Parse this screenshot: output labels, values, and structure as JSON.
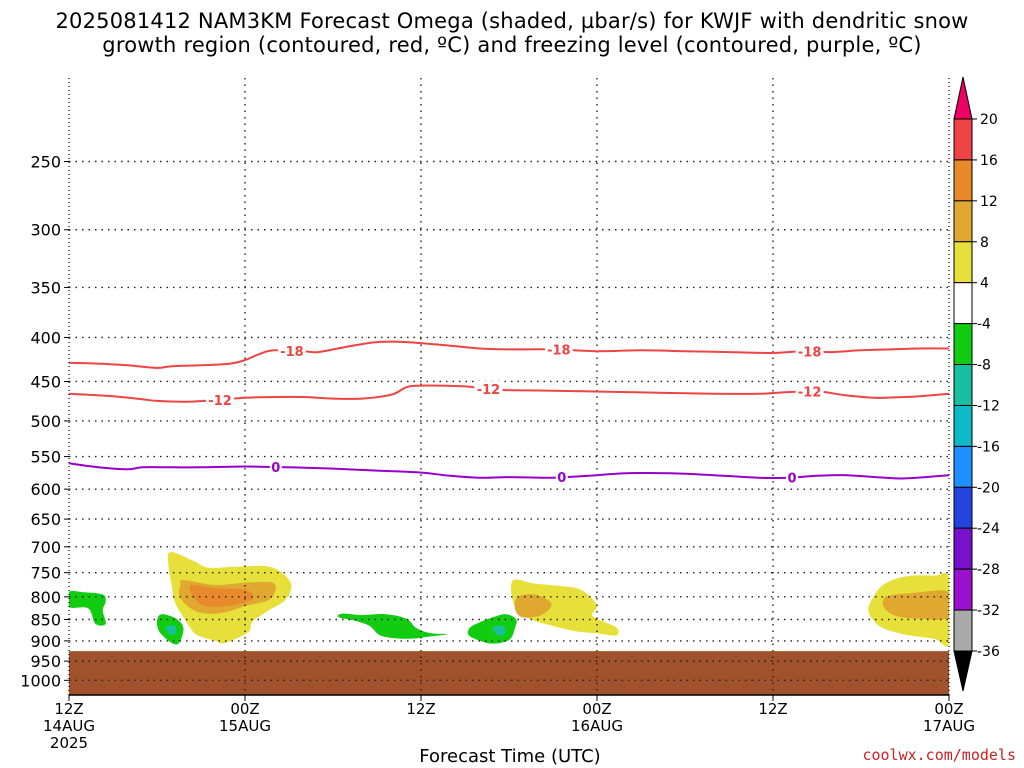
{
  "title": {
    "line1": "2025081412 NAM3KM Forecast Omega (shaded, µbar/s) for KWJF with dendritic snow",
    "line2": "growth region (contoured, red, ºC) and freezing level (contoured, purple, ºC)"
  },
  "credit": "coolwx.com/models",
  "chart_data": {
    "type": "heatmap",
    "xlabel": "Forecast Time (UTC)",
    "ylabel": "",
    "x_domain_hours": [
      0,
      60
    ],
    "y_axis": {
      "scale": "log",
      "range": [
        1040,
        200
      ],
      "unit": "hPa",
      "ticks": [
        250,
        300,
        350,
        400,
        450,
        500,
        550,
        600,
        650,
        700,
        750,
        800,
        850,
        900,
        950,
        1000
      ]
    },
    "x_ticks": [
      {
        "hour": 0,
        "line1": "12Z",
        "line2": "14AUG",
        "line3": "2025"
      },
      {
        "hour": 12,
        "line1": "00Z",
        "line2": "15AUG",
        "line3": ""
      },
      {
        "hour": 24,
        "line1": "12Z",
        "line2": "",
        "line3": ""
      },
      {
        "hour": 36,
        "line1": "00Z",
        "line2": "16AUG",
        "line3": ""
      },
      {
        "hour": 48,
        "line1": "12Z",
        "line2": "",
        "line3": ""
      },
      {
        "hour": 60,
        "line1": "00Z",
        "line2": "17AUG",
        "line3": ""
      }
    ],
    "grid": true,
    "terrain": {
      "surface_pressure_hpa": 925,
      "color": "#a0522d"
    },
    "contours": [
      {
        "name": "-18",
        "color": "#ee4444",
        "points": [
          [
            0,
            428
          ],
          [
            2,
            429
          ],
          [
            4,
            431
          ],
          [
            6,
            434
          ],
          [
            7,
            432
          ],
          [
            9,
            431
          ],
          [
            11,
            429
          ],
          [
            12,
            425
          ],
          [
            13,
            418
          ],
          [
            14,
            414
          ],
          [
            16,
            415
          ],
          [
            17,
            416
          ],
          [
            19,
            410
          ],
          [
            21,
            405
          ],
          [
            23,
            405
          ],
          [
            26,
            409
          ],
          [
            28,
            412
          ],
          [
            30,
            413
          ],
          [
            33,
            413
          ],
          [
            36,
            415
          ],
          [
            39,
            414
          ],
          [
            42,
            415
          ],
          [
            45,
            416
          ],
          [
            48,
            417
          ],
          [
            50,
            415
          ],
          [
            52,
            416
          ],
          [
            54,
            414
          ],
          [
            56,
            413
          ],
          [
            58,
            412
          ],
          [
            60,
            412
          ]
        ],
        "labels": [
          {
            "x": 15.2,
            "text": "-18"
          },
          {
            "x": 33.4,
            "text": "-18"
          },
          {
            "x": 50.5,
            "text": "-18"
          }
        ]
      },
      {
        "name": "-12",
        "color": "#ee4444",
        "points": [
          [
            0,
            465
          ],
          [
            3,
            468
          ],
          [
            5,
            472
          ],
          [
            6,
            474
          ],
          [
            8,
            475
          ],
          [
            10,
            473
          ],
          [
            12,
            470
          ],
          [
            14,
            469
          ],
          [
            16,
            469
          ],
          [
            18,
            471
          ],
          [
            20,
            471
          ],
          [
            22,
            466
          ],
          [
            23,
            457
          ],
          [
            24,
            455
          ],
          [
            27,
            456
          ],
          [
            29,
            460
          ],
          [
            32,
            461
          ],
          [
            35,
            462
          ],
          [
            38,
            463
          ],
          [
            41,
            464
          ],
          [
            44,
            465
          ],
          [
            47,
            465
          ],
          [
            49,
            463
          ],
          [
            51,
            462
          ],
          [
            53,
            467
          ],
          [
            55,
            470
          ],
          [
            57,
            469
          ],
          [
            58,
            468
          ],
          [
            60,
            465
          ]
        ],
        "labels": [
          {
            "x": 10.3,
            "text": "-12"
          },
          {
            "x": 28.6,
            "text": "-12"
          },
          {
            "x": 50.5,
            "text": "-12"
          }
        ]
      },
      {
        "name": "0",
        "color": "#9900cc",
        "points": [
          [
            0,
            560
          ],
          [
            2,
            566
          ],
          [
            4,
            569
          ],
          [
            5,
            566
          ],
          [
            7,
            566
          ],
          [
            9,
            566
          ],
          [
            11,
            565
          ],
          [
            13,
            565
          ],
          [
            15,
            566
          ],
          [
            18,
            568
          ],
          [
            21,
            571
          ],
          [
            24,
            574
          ],
          [
            26,
            579
          ],
          [
            28,
            582
          ],
          [
            30,
            581
          ],
          [
            33,
            582
          ],
          [
            36,
            578
          ],
          [
            38,
            575
          ],
          [
            41,
            575
          ],
          [
            44,
            578
          ],
          [
            47,
            582
          ],
          [
            49,
            582
          ],
          [
            51,
            579
          ],
          [
            53,
            578
          ],
          [
            55,
            581
          ],
          [
            57,
            583
          ],
          [
            60,
            578
          ]
        ],
        "labels": [
          {
            "x": 14.1,
            "text": "0"
          },
          {
            "x": 33.6,
            "text": "0"
          },
          {
            "x": 49.3,
            "text": "0"
          }
        ]
      }
    ],
    "shaded_regions": [
      {
        "level": "4",
        "color": "#e8e03a",
        "points": [
          [
            6.9,
            710
          ],
          [
            8.5,
            727
          ],
          [
            9.5,
            740
          ],
          [
            11.5,
            738
          ],
          [
            13.8,
            739
          ],
          [
            15.1,
            770
          ],
          [
            14.8,
            805
          ],
          [
            13.5,
            832
          ],
          [
            12.5,
            855
          ],
          [
            12.2,
            880
          ],
          [
            10.6,
            905
          ],
          [
            10,
            900
          ],
          [
            9,
            890
          ],
          [
            8.5,
            880
          ],
          [
            7.8,
            845
          ],
          [
            7.2,
            810
          ],
          [
            7.0,
            775
          ],
          [
            6.8,
            740
          ]
        ]
      },
      {
        "level": "8",
        "color": "#e0a830",
        "points": [
          [
            7.8,
            765
          ],
          [
            10,
            775
          ],
          [
            12.2,
            770
          ],
          [
            14,
            772
          ],
          [
            13.7,
            805
          ],
          [
            12,
            820
          ],
          [
            10.5,
            835
          ],
          [
            9,
            835
          ],
          [
            8,
            818
          ],
          [
            7.5,
            795
          ],
          [
            7.6,
            775
          ]
        ]
      },
      {
        "level": "12",
        "color": "#e88a2c",
        "points": [
          [
            8.4,
            775
          ],
          [
            10,
            782
          ],
          [
            12,
            785
          ],
          [
            12.6,
            800
          ],
          [
            12,
            812
          ],
          [
            10.2,
            822
          ],
          [
            9.1,
            818
          ],
          [
            8.6,
            805
          ],
          [
            8.3,
            790
          ]
        ]
      },
      {
        "level": "4",
        "color": "#e8e03a",
        "points": [
          [
            30.3,
            765
          ],
          [
            31.7,
            772
          ],
          [
            33.4,
            777
          ],
          [
            34.9,
            785
          ],
          [
            36,
            818
          ],
          [
            35.7,
            842
          ],
          [
            37.3,
            868
          ],
          [
            37.3,
            887
          ],
          [
            36,
            882
          ],
          [
            34.5,
            877
          ],
          [
            33,
            865
          ],
          [
            31.5,
            850
          ],
          [
            30.6,
            830
          ],
          [
            30.2,
            800
          ]
        ]
      },
      {
        "level": "8",
        "color": "#e0a830",
        "points": [
          [
            30.6,
            800
          ],
          [
            31.8,
            795
          ],
          [
            32.9,
            815
          ],
          [
            32.2,
            840
          ],
          [
            30.9,
            845
          ],
          [
            30.4,
            825
          ]
        ]
      },
      {
        "level": "4",
        "color": "#e8e03a",
        "points": [
          [
            54.7,
            808
          ],
          [
            55.5,
            775
          ],
          [
            57,
            758
          ],
          [
            59,
            756
          ],
          [
            60,
            762
          ],
          [
            60,
            905
          ],
          [
            59,
            895
          ],
          [
            57,
            885
          ],
          [
            55.5,
            870
          ],
          [
            54.8,
            850
          ],
          [
            54.5,
            830
          ]
        ]
      },
      {
        "level": "8",
        "color": "#e0a830",
        "points": [
          [
            55.7,
            800
          ],
          [
            57.5,
            792
          ],
          [
            60,
            790
          ],
          [
            60,
            845
          ],
          [
            58,
            848
          ],
          [
            56.5,
            843
          ],
          [
            55.6,
            825
          ]
        ]
      },
      {
        "level": "-4",
        "color": "#11cc11",
        "points": [
          [
            0,
            790
          ],
          [
            0.9,
            790
          ],
          [
            2.3,
            795
          ],
          [
            2.5,
            810
          ],
          [
            2.3,
            830
          ],
          [
            2.5,
            860
          ],
          [
            1.8,
            860
          ],
          [
            1.3,
            825
          ],
          [
            0,
            822
          ]
        ]
      },
      {
        "level": "-4",
        "color": "#11cc11",
        "points": [
          [
            6.3,
            838
          ],
          [
            7.3,
            848
          ],
          [
            7.8,
            870
          ],
          [
            7.5,
            905
          ],
          [
            7.0,
            905
          ],
          [
            6.2,
            880
          ],
          [
            6.0,
            855
          ]
        ]
      },
      {
        "level": "-8",
        "color": "#19c0a0",
        "points": [
          [
            6.6,
            868
          ],
          [
            7.2,
            864
          ],
          [
            7.3,
            880
          ],
          [
            6.9,
            885
          ]
        ]
      },
      {
        "level": "-4",
        "color": "#11cc11",
        "points": [
          [
            18.6,
            837
          ],
          [
            20,
            840
          ],
          [
            21.6,
            838
          ],
          [
            23,
            848
          ],
          [
            23.7,
            870
          ],
          [
            24.7,
            882
          ],
          [
            25.8,
            884
          ],
          [
            24.5,
            890
          ],
          [
            23,
            895
          ],
          [
            21.3,
            888
          ],
          [
            20.5,
            865
          ],
          [
            19.5,
            853
          ],
          [
            18.4,
            845
          ]
        ]
      },
      {
        "level": "-4",
        "color": "#11cc11",
        "points": [
          [
            27.9,
            858
          ],
          [
            28.9,
            845
          ],
          [
            29.8,
            838
          ],
          [
            30.5,
            850
          ],
          [
            30.4,
            870
          ],
          [
            30.1,
            895
          ],
          [
            29.4,
            905
          ],
          [
            28.5,
            905
          ],
          [
            27.3,
            888
          ],
          [
            27.3,
            870
          ]
        ]
      },
      {
        "level": "-8",
        "color": "#19c0a0",
        "points": [
          [
            28.9,
            868
          ],
          [
            29.6,
            865
          ],
          [
            29.7,
            885
          ],
          [
            29.2,
            885
          ]
        ]
      }
    ],
    "colorbar": {
      "levels": [
        "20",
        "16",
        "12",
        "8",
        "4",
        "-4",
        "-8",
        "-12",
        "-16",
        "-20",
        "-24",
        "-28",
        "-32",
        "-36"
      ],
      "colors": [
        "#ee0066",
        "#ee4444",
        "#e88a2c",
        "#e0a830",
        "#e8e03a",
        "#ffffff",
        "#11cc11",
        "#19c0a0",
        "#11b8c8",
        "#1e90ff",
        "#2244dd",
        "#7711cc",
        "#9911cc",
        "#aaaaaa",
        "#000000"
      ]
    }
  }
}
